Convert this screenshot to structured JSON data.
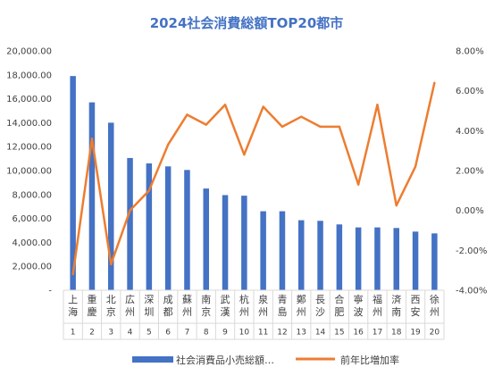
{
  "chart_data": {
    "type": "bar",
    "title": "2024社会消費総額TOP20都市",
    "categories": [
      "上海",
      "重慶",
      "北京",
      "広州",
      "深圳",
      "成都",
      "蘇州",
      "南京",
      "武漢",
      "杭州",
      "泉州",
      "青島",
      "鄭州",
      "長沙",
      "合肥",
      "寧波",
      "福州",
      "済南",
      "西安",
      "徐州"
    ],
    "ranks": [
      "1",
      "2",
      "3",
      "4",
      "5",
      "6",
      "7",
      "8",
      "9",
      "10",
      "11",
      "12",
      "13",
      "14",
      "15",
      "16",
      "17",
      "18",
      "19",
      "20"
    ],
    "series": [
      {
        "name": "社会消費品小売総額…",
        "type": "bar",
        "axis": "left",
        "color": "#4472c4",
        "values": [
          17900,
          15700,
          14000,
          11050,
          10600,
          10350,
          10050,
          8500,
          7950,
          7900,
          6600,
          6600,
          5850,
          5800,
          5500,
          5250,
          5250,
          5200,
          4900,
          4750
        ]
      },
      {
        "name": "前年比増加率",
        "type": "line",
        "axis": "right",
        "color": "#ed7d31",
        "values": [
          -3.2,
          3.6,
          -2.7,
          0.0,
          1.0,
          3.3,
          4.8,
          4.3,
          5.3,
          2.8,
          5.2,
          4.2,
          4.7,
          4.2,
          4.2,
          1.3,
          5.3,
          0.25,
          2.2,
          6.4
        ]
      }
    ],
    "y_left": {
      "min": 0,
      "max": 20000,
      "step": 2000,
      "tick_labels": [
        "-",
        "2,000.00",
        "4,000.00",
        "6,000.00",
        "8,000.00",
        "10,000.00",
        "12,000.00",
        "14,000.00",
        "16,000.00",
        "18,000.00",
        "20,000.00"
      ]
    },
    "y_right": {
      "min": -4,
      "max": 8,
      "step": 2,
      "tick_labels": [
        "-4.00%",
        "-2.00%",
        "0.00%",
        "2.00%",
        "4.00%",
        "6.00%",
        "8.00%"
      ]
    },
    "legend_position": "bottom",
    "grid": false
  }
}
